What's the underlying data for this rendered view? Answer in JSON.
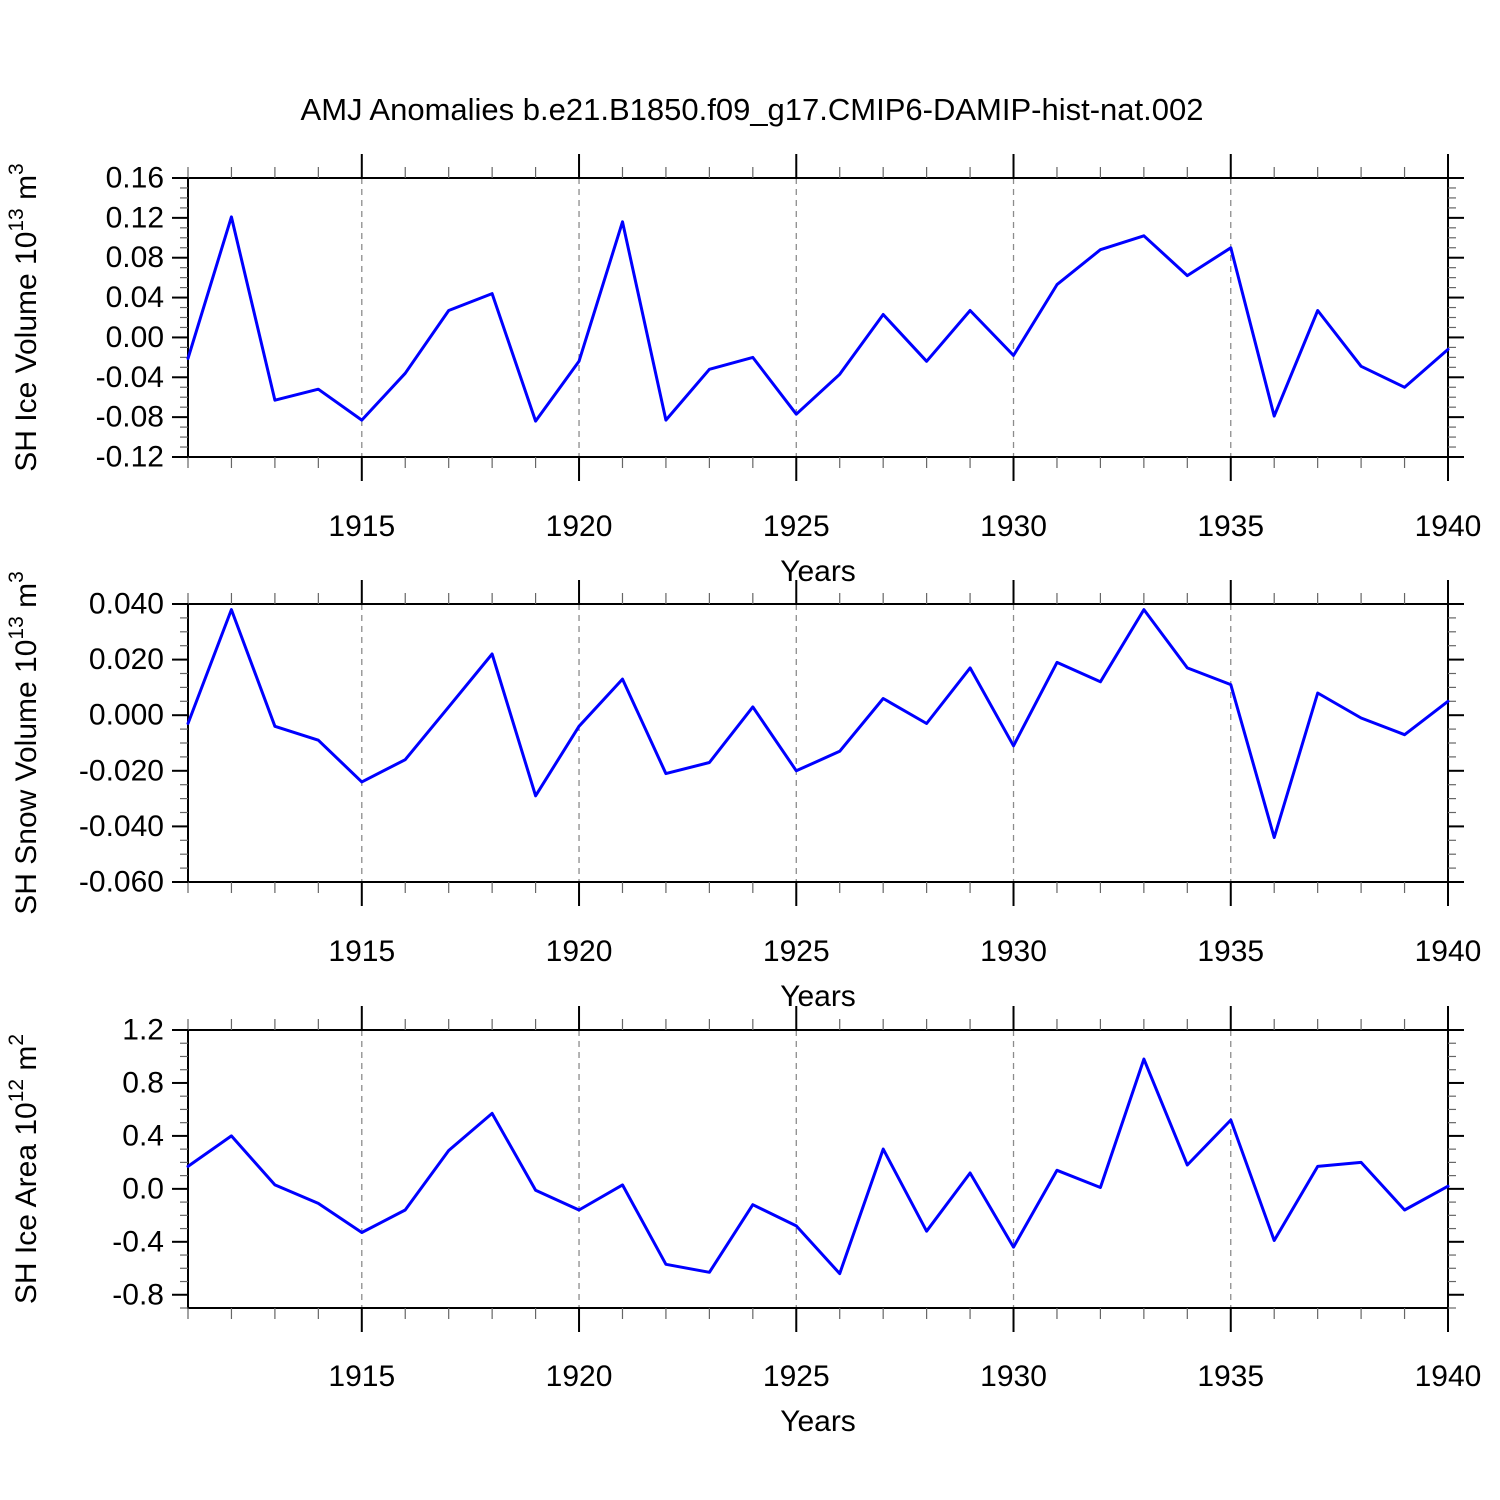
{
  "title": "AMJ Anomalies b.e21.B1850.f09_g17.CMIP6-DAMIP-hist-nat.002",
  "xlabel": "Years",
  "line_color": "#0000ff",
  "grid_color": "#8c8c8c",
  "chart_data": [
    {
      "type": "line",
      "name": "sh-ice-volume",
      "title": "",
      "ylabel": "SH Ice Volume 10^13 m^3",
      "ylabel_parts": [
        [
          "SH Ice Volume 10",
          0
        ],
        [
          "13",
          1
        ],
        [
          " m",
          0
        ],
        [
          "3",
          1
        ]
      ],
      "xlabel": "Years",
      "x": [
        1911,
        1912,
        1913,
        1914,
        1915,
        1916,
        1917,
        1918,
        1919,
        1920,
        1921,
        1922,
        1923,
        1924,
        1925,
        1926,
        1927,
        1928,
        1929,
        1930,
        1931,
        1932,
        1933,
        1934,
        1935,
        1936,
        1937,
        1938,
        1939,
        1940
      ],
      "values": [
        -0.021,
        0.121,
        -0.063,
        -0.052,
        -0.083,
        -0.036,
        0.027,
        0.044,
        -0.084,
        -0.024,
        0.116,
        -0.083,
        -0.032,
        -0.02,
        -0.077,
        -0.037,
        0.023,
        -0.024,
        0.027,
        -0.018,
        0.053,
        0.088,
        0.102,
        0.062,
        0.09,
        -0.079,
        0.027,
        -0.029,
        -0.05,
        -0.012
      ],
      "ylim": [
        -0.12,
        0.16
      ],
      "yticks": [
        0.16,
        0.12,
        0.08,
        0.04,
        0.0,
        -0.04,
        -0.08,
        -0.12
      ],
      "ytick_labels": [
        "0.16",
        "0.12",
        "0.08",
        "0.04",
        "0.00",
        "-0.04",
        "-0.08",
        "-0.12"
      ],
      "yminor_step": 0.01,
      "xticks": [
        1915,
        1920,
        1925,
        1930,
        1935,
        1940
      ],
      "xtick_labels": [
        "1915",
        "1920",
        "1925",
        "1930",
        "1935",
        "1940"
      ],
      "xgrid": [
        1915,
        1920,
        1925,
        1930,
        1935
      ],
      "grid": true,
      "legend": "none"
    },
    {
      "type": "line",
      "name": "sh-snow-volume",
      "title": "",
      "ylabel": "SH Snow Volume 10^13 m^3",
      "ylabel_parts": [
        [
          "SH Snow Volume 10",
          0
        ],
        [
          "13",
          1
        ],
        [
          " m",
          0
        ],
        [
          "3",
          1
        ]
      ],
      "xlabel": "Years",
      "x": [
        1911,
        1912,
        1913,
        1914,
        1915,
        1916,
        1917,
        1918,
        1919,
        1920,
        1921,
        1922,
        1923,
        1924,
        1925,
        1926,
        1927,
        1928,
        1929,
        1930,
        1931,
        1932,
        1933,
        1934,
        1935,
        1936,
        1937,
        1938,
        1939,
        1940
      ],
      "values": [
        -0.003,
        0.038,
        -0.004,
        -0.009,
        -0.024,
        -0.016,
        0.003,
        0.022,
        -0.029,
        -0.004,
        0.013,
        -0.021,
        -0.017,
        0.003,
        -0.02,
        -0.013,
        0.006,
        -0.003,
        0.017,
        -0.011,
        0.019,
        0.012,
        0.038,
        0.017,
        0.011,
        -0.044,
        0.008,
        -0.001,
        -0.007,
        0.005
      ],
      "ylim": [
        -0.06,
        0.04
      ],
      "yticks": [
        0.04,
        0.02,
        0.0,
        -0.02,
        -0.04,
        -0.06
      ],
      "ytick_labels": [
        "0.040",
        "0.020",
        "0.000",
        "-0.020",
        "-0.040",
        "-0.060"
      ],
      "yminor_step": 0.005,
      "xticks": [
        1915,
        1920,
        1925,
        1930,
        1935,
        1940
      ],
      "xtick_labels": [
        "1915",
        "1920",
        "1925",
        "1930",
        "1935",
        "1940"
      ],
      "xgrid": [
        1915,
        1920,
        1925,
        1930,
        1935
      ],
      "grid": true,
      "legend": "none"
    },
    {
      "type": "line",
      "name": "sh-ice-area",
      "title": "",
      "ylabel": "SH Ice Area 10^12 m^2",
      "ylabel_parts": [
        [
          "SH Ice Area 10",
          0
        ],
        [
          "12",
          1
        ],
        [
          " m",
          0
        ],
        [
          "2",
          1
        ]
      ],
      "xlabel": "Years",
      "x": [
        1911,
        1912,
        1913,
        1914,
        1915,
        1916,
        1917,
        1918,
        1919,
        1920,
        1921,
        1922,
        1923,
        1924,
        1925,
        1926,
        1927,
        1928,
        1929,
        1930,
        1931,
        1932,
        1933,
        1934,
        1935,
        1936,
        1937,
        1938,
        1939,
        1940
      ],
      "values": [
        0.17,
        0.4,
        0.03,
        -0.11,
        -0.33,
        -0.16,
        0.29,
        0.57,
        -0.01,
        -0.16,
        0.03,
        -0.57,
        -0.63,
        -0.12,
        -0.28,
        -0.64,
        0.3,
        -0.32,
        0.12,
        -0.44,
        0.14,
        0.01,
        0.98,
        0.18,
        0.52,
        -0.39,
        0.17,
        0.2,
        -0.16,
        0.02
      ],
      "ylim": [
        -0.9,
        1.2
      ],
      "yticks": [
        1.2,
        0.8,
        0.4,
        0.0,
        -0.4,
        -0.8
      ],
      "ytick_labels": [
        "1.2",
        "0.8",
        "0.4",
        "0.0",
        "-0.4",
        "-0.8"
      ],
      "yminor_step": 0.1,
      "xticks": [
        1915,
        1920,
        1925,
        1930,
        1935,
        1940
      ],
      "xtick_labels": [
        "1915",
        "1920",
        "1925",
        "1930",
        "1935",
        "1940"
      ],
      "xgrid": [
        1915,
        1920,
        1925,
        1930,
        1935
      ],
      "grid": true,
      "legend": "none"
    }
  ]
}
